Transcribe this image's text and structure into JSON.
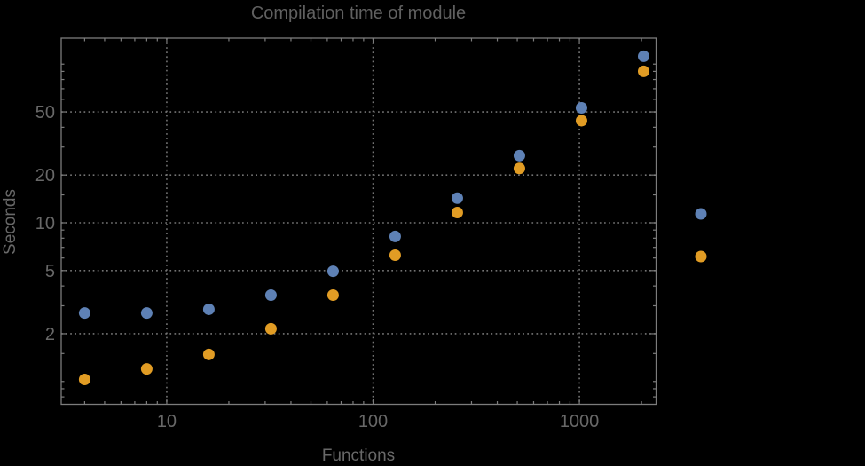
{
  "chart_data": {
    "type": "scatter",
    "title": "Compilation time of module",
    "xlabel": "Functions",
    "ylabel": "Seconds",
    "x_scale": "log",
    "y_scale": "log",
    "xlim": [
      3.08,
      2353
    ],
    "ylim": [
      0.718,
      145.7
    ],
    "x": [
      4,
      8,
      16,
      32,
      64,
      128,
      256,
      512,
      1024,
      2048
    ],
    "series": [
      {
        "name": "series-1",
        "color": "#5e81b5",
        "values": [
          2.7,
          2.7,
          2.85,
          3.5,
          4.95,
          8.2,
          14.3,
          26.5,
          53,
          112
        ]
      },
      {
        "name": "series-2",
        "color": "#e19c24",
        "values": [
          1.03,
          1.2,
          1.48,
          2.15,
          3.5,
          6.25,
          11.6,
          22,
          44,
          90
        ]
      }
    ],
    "x_ticks_major": {
      "values": [
        10,
        100,
        1000
      ],
      "labels": [
        "10",
        "100",
        "1000"
      ]
    },
    "x_ticks_minor": [
      4,
      5,
      6,
      7,
      8,
      9,
      20,
      30,
      40,
      50,
      60,
      70,
      80,
      90,
      200,
      300,
      400,
      500,
      600,
      700,
      800,
      900,
      2000
    ],
    "y_ticks_major": {
      "values": [
        2,
        5,
        10,
        20,
        50
      ],
      "labels": [
        "2",
        "5",
        "10",
        "20",
        "50"
      ]
    },
    "y_ticks_minor": [
      0.8,
      0.9,
      1,
      1.5,
      3,
      4,
      6,
      7,
      8,
      9,
      15,
      30,
      40,
      60,
      70,
      80,
      90,
      100
    ],
    "grid": "dotted lines at major ticks, frame on all four sides",
    "legend": {
      "position": "right-of-plot",
      "labels_visible": false,
      "markers": [
        {
          "series": "series-1",
          "color": "#5e81b5"
        },
        {
          "series": "series-2",
          "color": "#e19c24"
        }
      ]
    }
  },
  "styles": {
    "background": "#000000",
    "frame_color": "#7c7c7c",
    "grid_color": "#747474",
    "text_color": "#686868",
    "title_color": "#606060"
  }
}
